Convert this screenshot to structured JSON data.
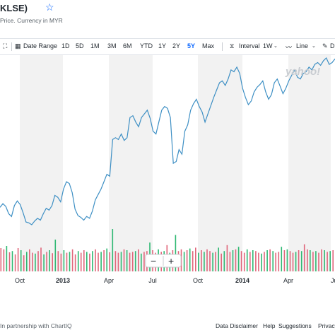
{
  "header": {
    "title": "KLSE)",
    "subtitle": "Price. Currency in MYR",
    "star_icon": "star-outline-icon"
  },
  "toolbar": {
    "date_range_label": "Date Range",
    "ranges": [
      "1D",
      "5D",
      "1M",
      "3M",
      "6M",
      "YTD",
      "1Y",
      "2Y",
      "5Y",
      "Max"
    ],
    "active_range": "5Y",
    "interval_label": "Interval",
    "interval_value": "1W",
    "chart_type_label": "Line",
    "draw_label": "D"
  },
  "watermark": "yahoo!",
  "zoom": {
    "minus": "−",
    "plus": "+"
  },
  "footer": {
    "partner": "In partnership with ChartIQ",
    "links": [
      "Data Disclaimer",
      "Help",
      "Suggestions",
      "Privacy"
    ]
  },
  "colors": {
    "line": "#3d8fc4",
    "up": "#2eb872",
    "down": "#e0657a",
    "accent": "#0f69ff",
    "band": "#f2f2f2"
  },
  "chart_data": {
    "type": "line",
    "x_tick_labels": [
      "Oct",
      "2013",
      "Apr",
      "Jul",
      "Oct",
      "2014",
      "Apr",
      "Ju"
    ],
    "bold_ticks": [
      "2013",
      "2014"
    ],
    "price_series": [
      0.72,
      0.76,
      0.73,
      0.65,
      0.62,
      0.74,
      0.79,
      0.75,
      0.66,
      0.56,
      0.55,
      0.53,
      0.57,
      0.6,
      0.58,
      0.65,
      0.71,
      0.69,
      0.74,
      0.85,
      0.83,
      0.78,
      0.92,
      1.0,
      0.98,
      0.88,
      0.7,
      0.63,
      0.61,
      0.58,
      0.62,
      0.6,
      0.68,
      0.8,
      0.86,
      0.92,
      1.0,
      1.08,
      1.06,
      1.46,
      1.48,
      1.46,
      1.52,
      1.45,
      1.48,
      1.7,
      1.72,
      1.65,
      1.6,
      1.7,
      1.74,
      1.78,
      1.69,
      1.55,
      1.52,
      1.65,
      1.78,
      1.82,
      1.8,
      1.7,
      1.2,
      1.22,
      1.35,
      1.3,
      1.55,
      1.62,
      1.78,
      1.85,
      1.9,
      1.82,
      1.76,
      1.65,
      1.74,
      1.83,
      1.92,
      2.0,
      2.08,
      2.1,
      2.05,
      2.12,
      2.22,
      2.2,
      2.25,
      2.18,
      2.02,
      1.92,
      1.84,
      1.88,
      1.98,
      2.03,
      2.06,
      2.1,
      1.98,
      1.9,
      1.95,
      2.08,
      2.12,
      2.04,
      1.96,
      2.02,
      2.1,
      2.16,
      2.22,
      2.14,
      2.12,
      2.18,
      2.2,
      2.25,
      2.22,
      2.28,
      2.3,
      2.27,
      2.32,
      2.35,
      2.28,
      2.3,
      2.34
    ],
    "volume_series": [
      0.55,
      0.52,
      0.6,
      0.45,
      0.48,
      0.4,
      0.55,
      0.5,
      0.38,
      0.46,
      0.52,
      0.44,
      0.42,
      0.48,
      0.56,
      0.4,
      0.46,
      0.5,
      0.43,
      0.75,
      0.48,
      0.42,
      0.5,
      0.44,
      0.46,
      0.52,
      0.4,
      0.48,
      0.44,
      0.5,
      0.46,
      0.42,
      0.48,
      0.52,
      0.44,
      0.46,
      0.5,
      0.54,
      0.45,
      1.0,
      0.48,
      0.44,
      0.46,
      0.52,
      0.5,
      0.44,
      0.46,
      0.48,
      0.52,
      0.42,
      0.46,
      0.48,
      0.68,
      0.5,
      0.44,
      0.52,
      0.46,
      0.48,
      0.62,
      0.44,
      0.5,
      0.86,
      0.48,
      0.52,
      0.46,
      0.5,
      0.54,
      0.48,
      0.56,
      0.44,
      0.5,
      0.46,
      0.52,
      0.48,
      0.44,
      0.46,
      0.56,
      0.42,
      0.48,
      0.62,
      0.46,
      0.5,
      0.52,
      0.58,
      0.48,
      0.44,
      0.52,
      0.46,
      0.5,
      0.48,
      0.44,
      0.42,
      0.46,
      0.5,
      0.52,
      0.48,
      0.44,
      0.46,
      0.58,
      0.5,
      0.52,
      0.48,
      0.44,
      0.46,
      0.5,
      0.48,
      0.64,
      0.52,
      0.5,
      0.46,
      0.48,
      0.44,
      0.52,
      0.5,
      0.46,
      0.48,
      0.5
    ],
    "volume_up_pattern": [
      0,
      0,
      1,
      0,
      1,
      0,
      0,
      1,
      0,
      1,
      0,
      0,
      1,
      0,
      0,
      1,
      0,
      1,
      0,
      1,
      0,
      0,
      1,
      0,
      1,
      0,
      0,
      1,
      0,
      0,
      1,
      0,
      1,
      0,
      0,
      1,
      0,
      1,
      0,
      1,
      0,
      0,
      1,
      0,
      1,
      0,
      0,
      1,
      0,
      1,
      0,
      0,
      1,
      0,
      0,
      1,
      0,
      1,
      0,
      1,
      0,
      1,
      0,
      0,
      1,
      0,
      1,
      0,
      0,
      1,
      0,
      1,
      0,
      0,
      1,
      0,
      1,
      0,
      1,
      0,
      0,
      1,
      0,
      1,
      0,
      0,
      1,
      0,
      1,
      0,
      0,
      1,
      0,
      1,
      0,
      1,
      0,
      0,
      1,
      0,
      1,
      0,
      0,
      1,
      0,
      1,
      0,
      0,
      1,
      0,
      1,
      0,
      0,
      1,
      0,
      1,
      0
    ]
  }
}
